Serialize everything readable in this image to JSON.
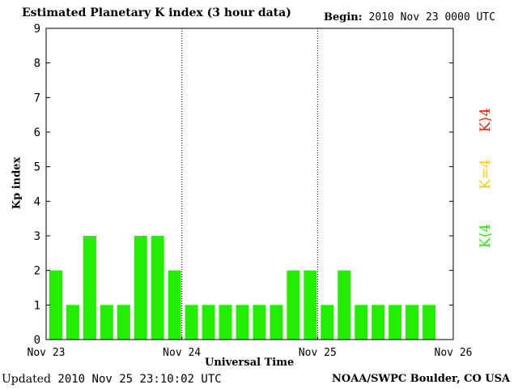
{
  "header": {
    "title": "Estimated Planetary K index (3 hour data)",
    "begin_label": "Begin:",
    "begin_value": "2010 Nov 23 0000 UTC"
  },
  "footer": {
    "updated_label": "Updated",
    "updated_value": "2010 Nov 25 23:10:02 UTC",
    "source": "NOAA/SWPC Boulder, CO USA"
  },
  "legend": {
    "items": [
      {
        "label": "K<4",
        "display": "K⟨4",
        "color": "#22ee00"
      },
      {
        "label": "K=4",
        "display": "K=4",
        "color": "#ffcc00"
      },
      {
        "label": "K>4",
        "display": "K⟩4",
        "color": "#ee2200"
      }
    ]
  },
  "chart_data": {
    "type": "bar",
    "title": "Estimated Planetary K index (3 hour data)",
    "xlabel": "Universal Time",
    "ylabel": "Kp index",
    "ylim": [
      0,
      9
    ],
    "yticks": [
      0,
      1,
      2,
      3,
      4,
      5,
      6,
      7,
      8,
      9
    ],
    "x_tick_labels": [
      "Nov 23",
      "Nov 24",
      "Nov 25",
      "Nov 26"
    ],
    "day_separators": [
      "Nov 24",
      "Nov 25"
    ],
    "bar_color": "#22ee00",
    "series": [
      {
        "values": [
          2,
          1,
          3,
          1,
          1,
          3,
          3,
          2,
          1,
          1,
          1,
          1,
          1,
          1,
          2,
          2,
          1,
          2,
          1,
          1,
          1,
          1,
          1
        ]
      }
    ]
  }
}
